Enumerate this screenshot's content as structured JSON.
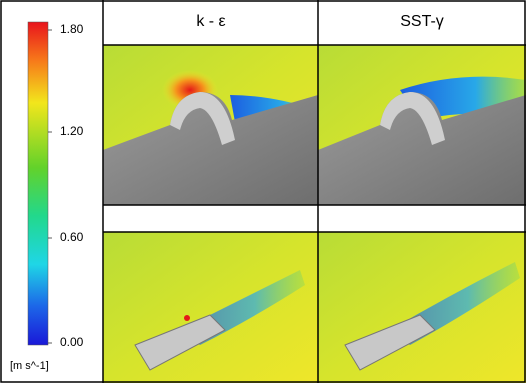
{
  "colorbar": {
    "tick_labels": [
      "1.80",
      "1.20",
      "0.60",
      "0.00"
    ],
    "unit": "[m s^-1]"
  },
  "columns": [
    "k - ε",
    "SST-γ"
  ]
}
